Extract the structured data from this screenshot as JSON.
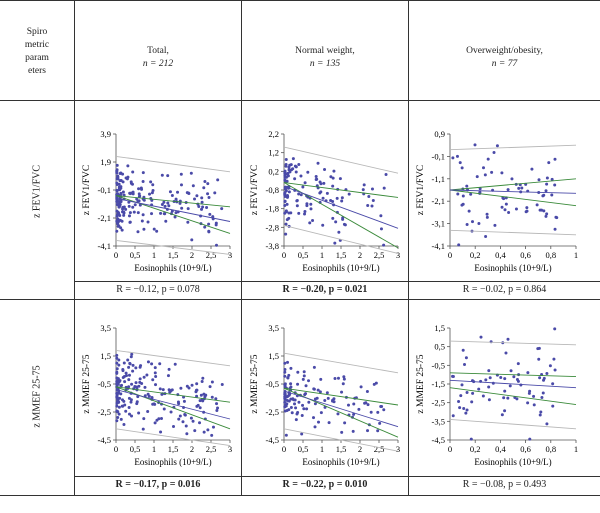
{
  "header": {
    "row_label": [
      "Spiro",
      "metric",
      "param",
      "eters"
    ],
    "columns": [
      {
        "line1": "Total,",
        "line2": "n = 212"
      },
      {
        "line1": "Normal weight,",
        "line2": "n = 135"
      },
      {
        "line1": "Overweight/obesity,",
        "line2": "n = 77"
      }
    ]
  },
  "rows": [
    {
      "label": "z FEV1/FVC",
      "stats": [
        {
          "text": "R = −0.12, p = 0.078",
          "bold": false
        },
        {
          "text": "R = −0.20, p = 0.021",
          "bold": true
        },
        {
          "text": "R = −0.02, p = 0.864",
          "bold": false
        }
      ]
    },
    {
      "label": "z MMEF 25-75",
      "stats": [
        {
          "text": "R = −0.17, p = 0.016",
          "bold": true
        },
        {
          "text": "R = −0.22, p = 0.010",
          "bold": true
        },
        {
          "text": "R = −0.08, p = 0.493",
          "bold": false
        }
      ]
    }
  ],
  "colors": {
    "points": "#4a4aa8",
    "fit": "#4a4aa8",
    "ci": "#3a8a3a",
    "pi": "#b8b8b8"
  },
  "chart_data": [
    {
      "type": "scatter",
      "ylabel": "z FEV1/FVC",
      "xlabel": "Eosinophils (10+9/L)",
      "xlim": [
        0,
        3
      ],
      "ylim": [
        -4.1,
        3.9
      ],
      "yticks": [
        "3,9",
        "1,9",
        "-0,1",
        "-2,1",
        "-4,1"
      ],
      "ytick_values": [
        3.9,
        1.9,
        -0.1,
        -2.1,
        -4.1
      ],
      "xticks": [
        "0",
        "0,5",
        "1",
        "1,5",
        "2",
        "2,5",
        "3"
      ],
      "xtick_values": [
        0,
        0.5,
        1,
        1.5,
        2,
        2.5,
        3
      ],
      "fit": {
        "intercept": -0.7,
        "slope": -0.55
      },
      "ci": {
        "upper": [
          -0.5,
          -1.3
        ],
        "lower": [
          -0.5,
          -3.2
        ]
      },
      "pi": {
        "upper": [
          2.3,
          1.2
        ],
        "lower": [
          -3.7,
          -4.7
        ]
      },
      "n_points": 212,
      "x_range": [
        0.02,
        2.8
      ],
      "x_skew": 2.5,
      "y_center": -0.7,
      "y_sd": 1.1
    },
    {
      "type": "scatter",
      "ylabel": "z FEV1/FVC",
      "xlabel": "Eosinophils (10+9/L)",
      "xlim": [
        0,
        3
      ],
      "ylim": [
        -3.8,
        2.2
      ],
      "yticks": [
        "2,2",
        "1,2",
        "0,2",
        "-0,8",
        "-1,8",
        "-2,8",
        "-3,8"
      ],
      "ytick_values": [
        2.2,
        1.2,
        0.2,
        -0.8,
        -1.8,
        -2.8,
        -3.8
      ],
      "xticks": [
        "0",
        "0,5",
        "1",
        "1,5",
        "2",
        "2,5",
        "3"
      ],
      "xtick_values": [
        0,
        0.5,
        1,
        1.5,
        2,
        2.5,
        3
      ],
      "fit": {
        "intercept": -0.6,
        "slope": -0.75
      },
      "ci": {
        "upper": [
          -0.4,
          -1.2
        ],
        "lower": [
          -0.4,
          -3.9
        ]
      },
      "pi": {
        "upper": [
          1.5,
          0.1
        ],
        "lower": [
          -2.7,
          -4.2
        ]
      },
      "n_points": 135,
      "x_range": [
        0.02,
        2.7
      ],
      "x_skew": 2.5,
      "y_center": -0.6,
      "y_sd": 1.0
    },
    {
      "type": "scatter",
      "ylabel": "z FEV1/FVC",
      "xlabel": "Eosinophils (10+9/L)",
      "xlim": [
        0,
        1
      ],
      "ylim": [
        -4.1,
        0.9
      ],
      "yticks": [
        "0,9",
        "-0,1",
        "-1,1",
        "-2,1",
        "-3,1",
        "-4,1"
      ],
      "ytick_values": [
        0.9,
        -0.1,
        -1.1,
        -2.1,
        -3.1,
        -4.1
      ],
      "xticks": [
        "0",
        "0,2",
        "0,4",
        "0,6",
        "0,8",
        "1"
      ],
      "xtick_values": [
        0,
        0.2,
        0.4,
        0.6,
        0.8,
        1
      ],
      "fit": {
        "intercept": -1.6,
        "slope": -0.15
      },
      "ci": {
        "upper": [
          -1.6,
          -1.1
        ],
        "lower": [
          -1.6,
          -2.3
        ]
      },
      "pi": {
        "upper": [
          0.2,
          0.4
        ],
        "lower": [
          -3.4,
          -3.6
        ]
      },
      "n_points": 77,
      "x_range": [
        0.02,
        0.85
      ],
      "x_skew": 1.0,
      "y_center": -1.6,
      "y_sd": 0.9
    },
    {
      "type": "scatter",
      "ylabel": "z MMEF 25-75",
      "xlabel": "Eosinophils (10+9/L)",
      "xlim": [
        0,
        3
      ],
      "ylim": [
        -4.5,
        3.5
      ],
      "yticks": [
        "3,5",
        "1,5",
        "-0,5",
        "-2,5",
        "-4,5"
      ],
      "ytick_values": [
        3.5,
        1.5,
        -0.5,
        -2.5,
        -4.5
      ],
      "xticks": [
        "0",
        "0,5",
        "1",
        "1,5",
        "2",
        "2,5",
        "3"
      ],
      "xtick_values": [
        0,
        0.5,
        1,
        1.5,
        2,
        2.5,
        3
      ],
      "fit": {
        "intercept": -0.9,
        "slope": -0.7
      },
      "ci": {
        "upper": [
          -0.7,
          -1.8
        ],
        "lower": [
          -0.7,
          -3.7
        ]
      },
      "pi": {
        "upper": [
          1.9,
          0.8
        ],
        "lower": [
          -3.7,
          -4.9
        ]
      },
      "n_points": 212,
      "x_range": [
        0.02,
        2.8
      ],
      "x_skew": 2.5,
      "y_center": -0.9,
      "y_sd": 1.2
    },
    {
      "type": "scatter",
      "ylabel": "z MMEF 25-75",
      "xlabel": "Eosinophils (10+9/L)",
      "xlim": [
        0,
        3
      ],
      "ylim": [
        -4.5,
        3.5
      ],
      "yticks": [
        "3,5",
        "1,5",
        "-0,5",
        "-2,5",
        "-4,5"
      ],
      "ytick_values": [
        3.5,
        1.5,
        -0.5,
        -2.5,
        -4.5
      ],
      "xticks": [
        "0",
        "0,5",
        "1",
        "1,5",
        "2",
        "2,5",
        "3"
      ],
      "xtick_values": [
        0,
        0.5,
        1,
        1.5,
        2,
        2.5,
        3
      ],
      "fit": {
        "intercept": -1.0,
        "slope": -0.85
      },
      "ci": {
        "upper": [
          -0.8,
          -2.0
        ],
        "lower": [
          -0.8,
          -4.3
        ]
      },
      "pi": {
        "upper": [
          1.7,
          0.3
        ],
        "lower": [
          -3.7,
          -5.3
        ]
      },
      "n_points": 135,
      "x_range": [
        0.02,
        2.7
      ],
      "x_skew": 2.5,
      "y_center": -1.0,
      "y_sd": 1.1
    },
    {
      "type": "scatter",
      "ylabel": "z MMEF 25-75",
      "xlabel": "Eosinophils (10+9/L)",
      "xlim": [
        0,
        1
      ],
      "ylim": [
        -4.5,
        1.5
      ],
      "yticks": [
        "1,5",
        "0,5",
        "-0,5",
        "-1,5",
        "-2,5",
        "-3,5",
        "-4,5"
      ],
      "ytick_values": [
        1.5,
        0.5,
        -0.5,
        -1.5,
        -2.5,
        -3.5,
        -4.5
      ],
      "xticks": [
        "0",
        "0,2",
        "0,4",
        "0,6",
        "0,8",
        "1"
      ],
      "xtick_values": [
        0,
        0.2,
        0.4,
        0.6,
        0.8,
        1
      ],
      "fit": {
        "intercept": -1.3,
        "slope": -0.4
      },
      "ci": {
        "upper": [
          -0.9,
          -1.1
        ],
        "lower": [
          -1.7,
          -2.6
        ]
      },
      "pi": {
        "upper": [
          0.8,
          0.6
        ],
        "lower": [
          -3.4,
          -3.9
        ]
      },
      "n_points": 77,
      "x_range": [
        0.02,
        0.85
      ],
      "x_skew": 1.0,
      "y_center": -1.4,
      "y_sd": 1.1
    }
  ]
}
